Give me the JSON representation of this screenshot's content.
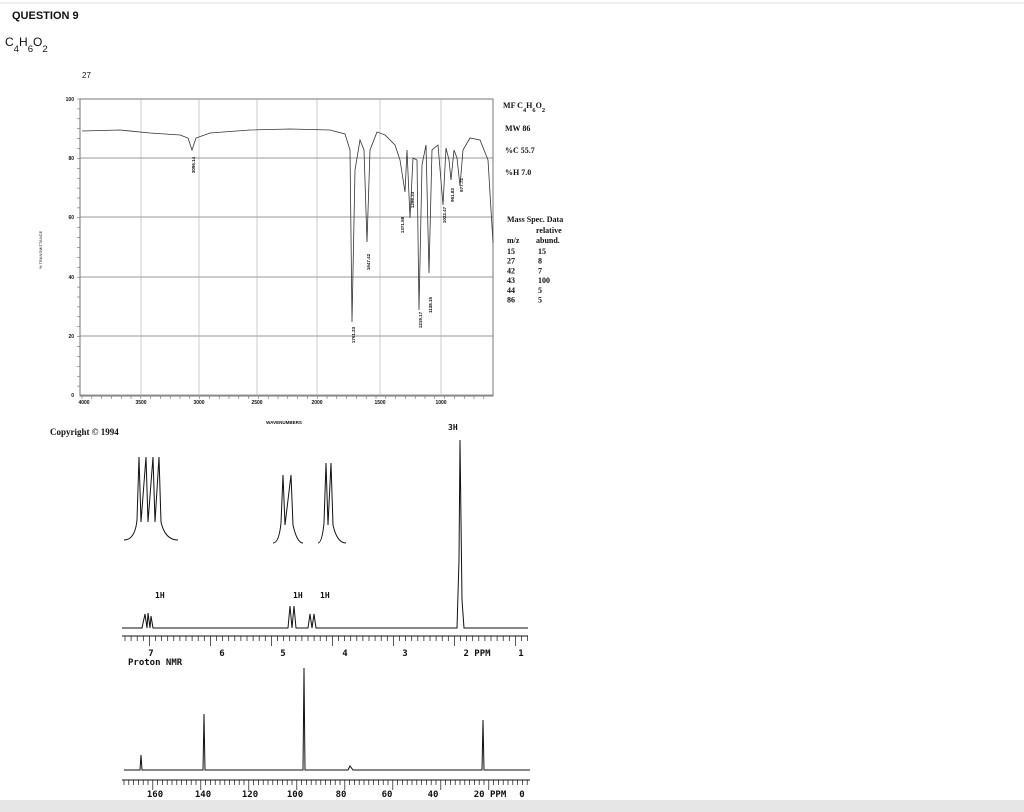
{
  "header": {
    "title": "QUESTION 9"
  },
  "question": {
    "formula": "C4H6O2"
  },
  "figure": {
    "corner_label": "27",
    "ir": {
      "y_label": "% TRANSMITTANCE",
      "y_ticks": [
        "100",
        "80",
        "60",
        "40",
        "20",
        "0"
      ],
      "x_ticks": [
        "4000",
        "3500",
        "3000",
        "2500",
        "2000",
        "1500",
        "1000"
      ],
      "x_label": "WAVENUMBERS",
      "peak_labels": [
        "3096.14",
        "1761.23",
        "1647.42",
        "1371.58",
        "1298.33",
        "1219.17",
        "1138.15",
        "1022.47",
        "951.83",
        "877.72"
      ]
    },
    "info": {
      "mf": "MF C4H6O2",
      "mw": "MW 86",
      "pc": "%C 55.7",
      "ph": "%H 7.0",
      "mass_title": "Mass Spec. Data",
      "col2_top": "relative",
      "col1": "m/z",
      "col2": "abund.",
      "rows": [
        [
          "15",
          "15"
        ],
        [
          "27",
          "8"
        ],
        [
          "42",
          "7"
        ],
        [
          "43",
          "100"
        ],
        [
          "44",
          "5"
        ],
        [
          "86",
          "5"
        ]
      ]
    },
    "copyright": "Copyright © 1994",
    "proton": {
      "integrations": [
        "1H",
        "1H",
        "1H",
        "3H"
      ],
      "x_ticks": [
        "7",
        "6",
        "5",
        "4",
        "3",
        "2 PPM",
        "1"
      ],
      "title": "Proton NMR"
    },
    "carbon": {
      "x_ticks": [
        "160",
        "140",
        "120",
        "100",
        "80",
        "60",
        "40",
        "20 PPM",
        "0"
      ]
    }
  }
}
